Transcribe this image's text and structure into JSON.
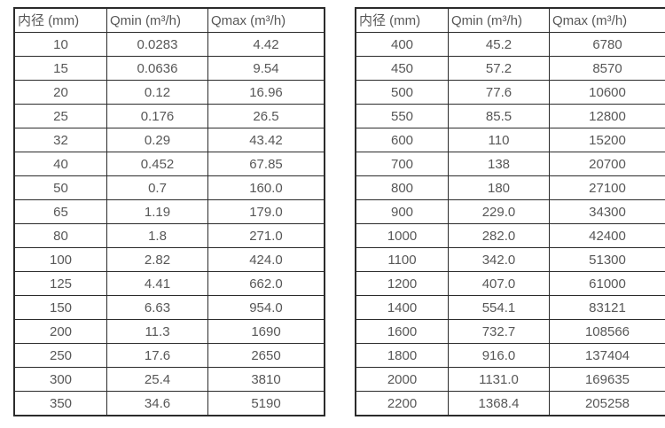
{
  "page": {
    "background_color": "#ffffff",
    "border_color": "#2b2b2b",
    "text_color": "#575757"
  },
  "tables": [
    {
      "name": "flow-table-small-diameters",
      "columns": [
        "内径 (mm)",
        "Qmin (m³/h)",
        "Qmax (m³/h)"
      ],
      "rows": [
        [
          "10",
          "0.0283",
          "4.42"
        ],
        [
          "15",
          "0.0636",
          "9.54"
        ],
        [
          "20",
          "0.12",
          "16.96"
        ],
        [
          "25",
          "0.176",
          "26.5"
        ],
        [
          "32",
          "0.29",
          "43.42"
        ],
        [
          "40",
          "0.452",
          "67.85"
        ],
        [
          "50",
          "0.7",
          "160.0"
        ],
        [
          "65",
          "1.19",
          "179.0"
        ],
        [
          "80",
          "1.8",
          "271.0"
        ],
        [
          "100",
          "2.82",
          "424.0"
        ],
        [
          "125",
          "4.41",
          "662.0"
        ],
        [
          "150",
          "6.63",
          "954.0"
        ],
        [
          "200",
          "11.3",
          "1690"
        ],
        [
          "250",
          "17.6",
          "2650"
        ],
        [
          "300",
          "25.4",
          "3810"
        ],
        [
          "350",
          "34.6",
          "5190"
        ]
      ]
    },
    {
      "name": "flow-table-large-diameters",
      "columns": [
        "内径 (mm)",
        "Qmin (m³/h)",
        "Qmax (m³/h)"
      ],
      "rows": [
        [
          "400",
          "45.2",
          "6780"
        ],
        [
          "450",
          "57.2",
          "8570"
        ],
        [
          "500",
          "77.6",
          "10600"
        ],
        [
          "550",
          "85.5",
          "12800"
        ],
        [
          "600",
          "110",
          "15200"
        ],
        [
          "700",
          "138",
          "20700"
        ],
        [
          "800",
          "180",
          "27100"
        ],
        [
          "900",
          "229.0",
          "34300"
        ],
        [
          "1000",
          "282.0",
          "42400"
        ],
        [
          "1100",
          "342.0",
          "51300"
        ],
        [
          "1200",
          "407.0",
          "61000"
        ],
        [
          "1400",
          "554.1",
          "83121"
        ],
        [
          "1600",
          "732.7",
          "108566"
        ],
        [
          "1800",
          "916.0",
          "137404"
        ],
        [
          "2000",
          "1131.0",
          "169635"
        ],
        [
          "2200",
          "1368.4",
          "205258"
        ]
      ]
    }
  ]
}
